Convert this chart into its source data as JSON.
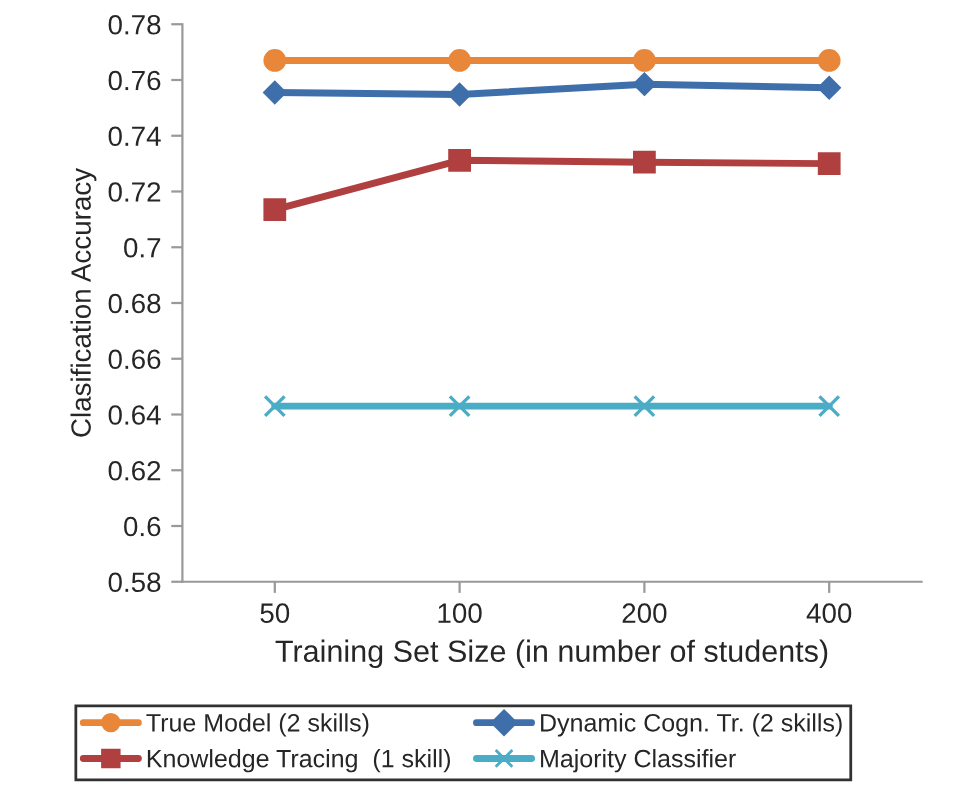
{
  "chart_data": {
    "type": "line",
    "xlabel": "Training Set Size (in number of students)",
    "ylabel": "Clasification Accuracy",
    "categories": [
      "50",
      "100",
      "200",
      "400"
    ],
    "series": [
      {
        "name": "True Model (2 skills)",
        "color": "#e8873a",
        "marker": "circle",
        "values": [
          0.767,
          0.767,
          0.767,
          0.767
        ]
      },
      {
        "name": "Dynamic Cogn. Tr. (2 skills)",
        "color": "#3f6faa",
        "marker": "diamond",
        "values": [
          0.7555,
          0.7548,
          0.7585,
          0.7572
        ]
      },
      {
        "name": "Knowledge Tracing  (1 skill)",
        "color": "#b04040",
        "marker": "square",
        "values": [
          0.7135,
          0.7312,
          0.7305,
          0.73
        ]
      },
      {
        "name": "Majority Classifier",
        "color": "#4bacc6",
        "marker": "cross",
        "values": [
          0.643,
          0.643,
          0.643,
          0.643
        ]
      }
    ],
    "ylim": [
      0.58,
      0.78
    ],
    "yticks": [
      0.58,
      0.6,
      0.62,
      0.64,
      0.66,
      0.68,
      0.7,
      0.72,
      0.74,
      0.76,
      0.78
    ],
    "grid": false,
    "legend": "bottom"
  }
}
